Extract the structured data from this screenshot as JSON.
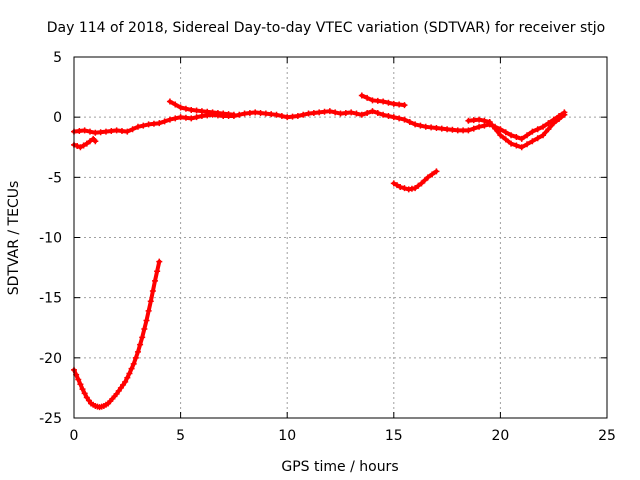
{
  "chart_data": {
    "type": "scatter",
    "title": "Day 114 of 2018, Sidereal Day-to-day VTEC variation (SDTVAR) for receiver stjo",
    "xlabel": "GPS time / hours",
    "ylabel": "SDTVAR / TECUs",
    "xlim": [
      0,
      25
    ],
    "ylim": [
      -25,
      5
    ],
    "xticks": [
      0,
      5,
      10,
      15,
      20,
      25
    ],
    "yticks": [
      -25,
      -20,
      -15,
      -10,
      -5,
      0,
      5
    ],
    "grid": true,
    "marker_color": "#ff0000",
    "series": [
      {
        "name": "main-band",
        "points": [
          [
            0,
            -1.2
          ],
          [
            0.5,
            -1.1
          ],
          [
            1,
            -1.3
          ],
          [
            1.5,
            -1.2
          ],
          [
            2,
            -1.1
          ],
          [
            2.5,
            -1.2
          ],
          [
            3,
            -0.8
          ],
          [
            3.5,
            -0.6
          ],
          [
            4,
            -0.5
          ],
          [
            4.5,
            -0.2
          ],
          [
            5,
            0.0
          ],
          [
            5.5,
            -0.1
          ],
          [
            6,
            0.1
          ],
          [
            6.5,
            0.2
          ],
          [
            7,
            0.1
          ],
          [
            7.5,
            0.1
          ],
          [
            8,
            0.3
          ],
          [
            8.5,
            0.4
          ],
          [
            9,
            0.3
          ],
          [
            9.5,
            0.2
          ],
          [
            10,
            0.0
          ],
          [
            10.5,
            0.1
          ],
          [
            11,
            0.3
          ],
          [
            11.5,
            0.4
          ],
          [
            12,
            0.5
          ],
          [
            12.5,
            0.3
          ],
          [
            13,
            0.4
          ],
          [
            13.5,
            0.2
          ],
          [
            14,
            0.5
          ],
          [
            14.5,
            0.2
          ],
          [
            15,
            0.0
          ],
          [
            15.5,
            -0.2
          ],
          [
            16,
            -0.6
          ],
          [
            16.5,
            -0.8
          ],
          [
            17,
            -0.9
          ],
          [
            17.5,
            -1.0
          ],
          [
            18,
            -1.1
          ],
          [
            18.5,
            -1.1
          ],
          [
            19,
            -0.8
          ],
          [
            19.5,
            -0.6
          ],
          [
            20,
            -1.0
          ],
          [
            20.5,
            -1.5
          ],
          [
            21,
            -1.8
          ],
          [
            21.5,
            -1.2
          ],
          [
            22,
            -0.8
          ],
          [
            22.5,
            -0.2
          ],
          [
            23,
            0.4
          ]
        ]
      },
      {
        "name": "upper-arc",
        "points": [
          [
            4.5,
            1.3
          ],
          [
            5,
            0.8
          ],
          [
            5.5,
            0.6
          ],
          [
            6,
            0.5
          ],
          [
            6.5,
            0.4
          ],
          [
            7,
            0.3
          ],
          [
            7.5,
            0.2
          ]
        ]
      },
      {
        "name": "upper-blip",
        "points": [
          [
            13.5,
            1.8
          ],
          [
            14,
            1.4
          ],
          [
            14.5,
            1.3
          ],
          [
            15,
            1.1
          ],
          [
            15.5,
            1.0
          ]
        ]
      },
      {
        "name": "start-dip",
        "points": [
          [
            0,
            -2.3
          ],
          [
            0.3,
            -2.5
          ],
          [
            0.6,
            -2.2
          ],
          [
            0.9,
            -1.8
          ],
          [
            1,
            -2.0
          ]
        ]
      },
      {
        "name": "late-noise",
        "points": [
          [
            18.5,
            -0.3
          ],
          [
            19,
            -0.2
          ],
          [
            19.5,
            -0.4
          ],
          [
            20,
            -1.5
          ],
          [
            20.5,
            -2.2
          ],
          [
            21,
            -2.5
          ],
          [
            21.5,
            -2.0
          ],
          [
            22,
            -1.5
          ],
          [
            22.5,
            -0.5
          ],
          [
            23,
            0.2
          ]
        ]
      },
      {
        "name": "mid-segment",
        "points": [
          [
            15,
            -5.5
          ],
          [
            15.3,
            -5.8
          ],
          [
            15.7,
            -6.0
          ],
          [
            16,
            -5.9
          ],
          [
            16.3,
            -5.5
          ],
          [
            16.6,
            -5.0
          ],
          [
            17,
            -4.5
          ]
        ]
      },
      {
        "name": "early-curve",
        "points": [
          [
            0,
            -21.0
          ],
          [
            0.2,
            -21.8
          ],
          [
            0.4,
            -22.6
          ],
          [
            0.6,
            -23.3
          ],
          [
            0.8,
            -23.8
          ],
          [
            1,
            -24.0
          ],
          [
            1.2,
            -24.1
          ],
          [
            1.4,
            -24.0
          ],
          [
            1.6,
            -23.8
          ],
          [
            1.8,
            -23.4
          ],
          [
            2,
            -23.0
          ],
          [
            2.2,
            -22.5
          ],
          [
            2.4,
            -22.0
          ],
          [
            2.6,
            -21.3
          ],
          [
            2.8,
            -20.5
          ],
          [
            3,
            -19.5
          ],
          [
            3.2,
            -18.3
          ],
          [
            3.4,
            -16.9
          ],
          [
            3.6,
            -15.3
          ],
          [
            3.8,
            -13.6
          ],
          [
            4,
            -12.0
          ]
        ]
      }
    ]
  }
}
